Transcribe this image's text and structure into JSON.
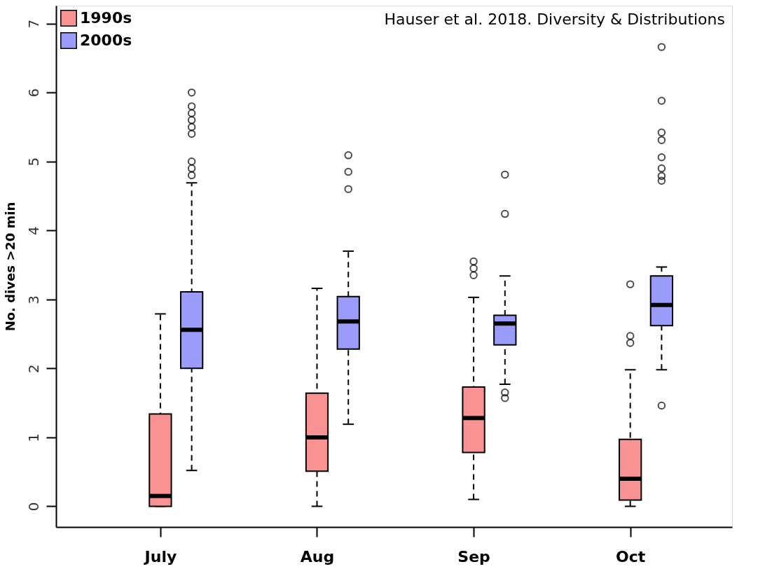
{
  "chart_data": {
    "type": "box",
    "ylabel": "No. dives >20 min",
    "categories": [
      "July",
      "Aug",
      "Sep",
      "Oct"
    ],
    "ylim": [
      -0.3,
      7.26
    ],
    "yticks": [
      0,
      1,
      2,
      3,
      4,
      5,
      6,
      7
    ],
    "grid": false,
    "legend": "top left",
    "annotations": [
      "Hauser et al. 2018. Diversity & Distributions"
    ],
    "series": [
      {
        "name": "1990s",
        "color": "#f99393",
        "boxes": [
          {
            "low": 0,
            "q1": 0,
            "median": 0.15,
            "q3": 1.34,
            "high": 2.79
          },
          {
            "low": 0,
            "q1": 0.51,
            "median": 1.0,
            "q3": 1.64,
            "high": 3.16
          },
          {
            "low": 0.1,
            "q1": 0.78,
            "median": 1.28,
            "q3": 1.73,
            "high": 3.03,
            "outliers": [
              3.55,
              3.45,
              3.35
            ]
          },
          {
            "low": 0,
            "q1": 0.09,
            "median": 0.4,
            "q3": 0.97,
            "high": 1.98,
            "outliers": [
              3.22,
              2.47,
              2.37
            ]
          }
        ]
      },
      {
        "name": "2000s",
        "color": "#9b9bfb",
        "boxes": [
          {
            "low": 0.52,
            "q1": 2.0,
            "median": 2.56,
            "q3": 3.11,
            "high": 4.69,
            "outliers": [
              6.0,
              5.8,
              5.7,
              5.6,
              5.5,
              5.4,
              5.0,
              4.9,
              4.8
            ]
          },
          {
            "low": 1.19,
            "q1": 2.28,
            "median": 2.68,
            "q3": 3.04,
            "high": 3.7,
            "outliers": [
              5.09,
              4.85,
              4.6
            ]
          },
          {
            "low": 1.77,
            "q1": 2.34,
            "median": 2.65,
            "q3": 2.77,
            "high": 3.34,
            "outliers": [
              4.81,
              4.24,
              1.65,
              1.57
            ]
          },
          {
            "low": 1.98,
            "q1": 2.62,
            "median": 2.92,
            "q3": 3.34,
            "high": 3.47,
            "outliers": [
              6.66,
              5.88,
              5.42,
              5.31,
              5.06,
              4.9,
              4.79,
              4.72,
              1.46
            ]
          }
        ]
      }
    ]
  }
}
